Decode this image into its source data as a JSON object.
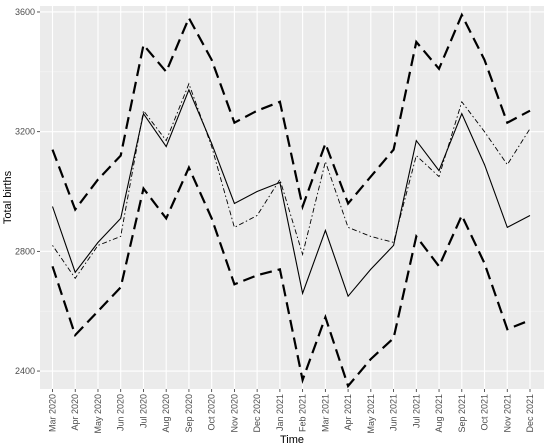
{
  "chart_data": {
    "type": "line",
    "xlabel": "Time",
    "ylabel": "Total births",
    "ylim": [
      2340,
      3620
    ],
    "yticks": [
      2400,
      2800,
      3200,
      3600
    ],
    "categories": [
      "Mar 2020",
      "Apr 2020",
      "May 2020",
      "Jun 2020",
      "Jul 2020",
      "Aug 2020",
      "Sep 2020",
      "Oct 2020",
      "Nov 2020",
      "Dec 2020",
      "Jan 2021",
      "Feb 2021",
      "Mar 2021",
      "Apr 2021",
      "May 2021",
      "Jun 2021",
      "Jul 2021",
      "Aug 2021",
      "Sep 2021",
      "Oct 2021",
      "Nov 2021",
      "Dec 2021"
    ],
    "grid": true,
    "legend": "none",
    "colors": {
      "panel": "#ebebeb",
      "grid_major": "#ffffff",
      "grid_minor": "#f4f4f4",
      "line": "#000000"
    },
    "series": [
      {
        "style": "solid",
        "values": [
          2950,
          2730,
          2830,
          2910,
          3260,
          3150,
          3340,
          3160,
          2960,
          3000,
          3030,
          2660,
          2870,
          2650,
          2740,
          2820,
          3170,
          3070,
          3260,
          3090,
          2880,
          2920
        ]
      },
      {
        "style": "dotdash",
        "values": [
          2820,
          2710,
          2820,
          2850,
          3270,
          3170,
          3360,
          3150,
          2880,
          2920,
          3040,
          2790,
          3100,
          2880,
          2850,
          2830,
          3120,
          3050,
          3300,
          3200,
          3090,
          3210
        ]
      },
      {
        "style": "longdash",
        "values": [
          3140,
          2940,
          3040,
          3120,
          3490,
          3400,
          3580,
          3440,
          3230,
          3270,
          3300,
          2950,
          3160,
          2960,
          3050,
          3140,
          3500,
          3410,
          3590,
          3440,
          3230,
          3270
        ]
      },
      {
        "style": "longdash",
        "values": [
          2750,
          2520,
          2600,
          2680,
          3010,
          2910,
          3080,
          2910,
          2690,
          2720,
          2740,
          2370,
          2580,
          2350,
          2440,
          2510,
          2850,
          2750,
          2920,
          2760,
          2540,
          2570
        ]
      }
    ]
  }
}
